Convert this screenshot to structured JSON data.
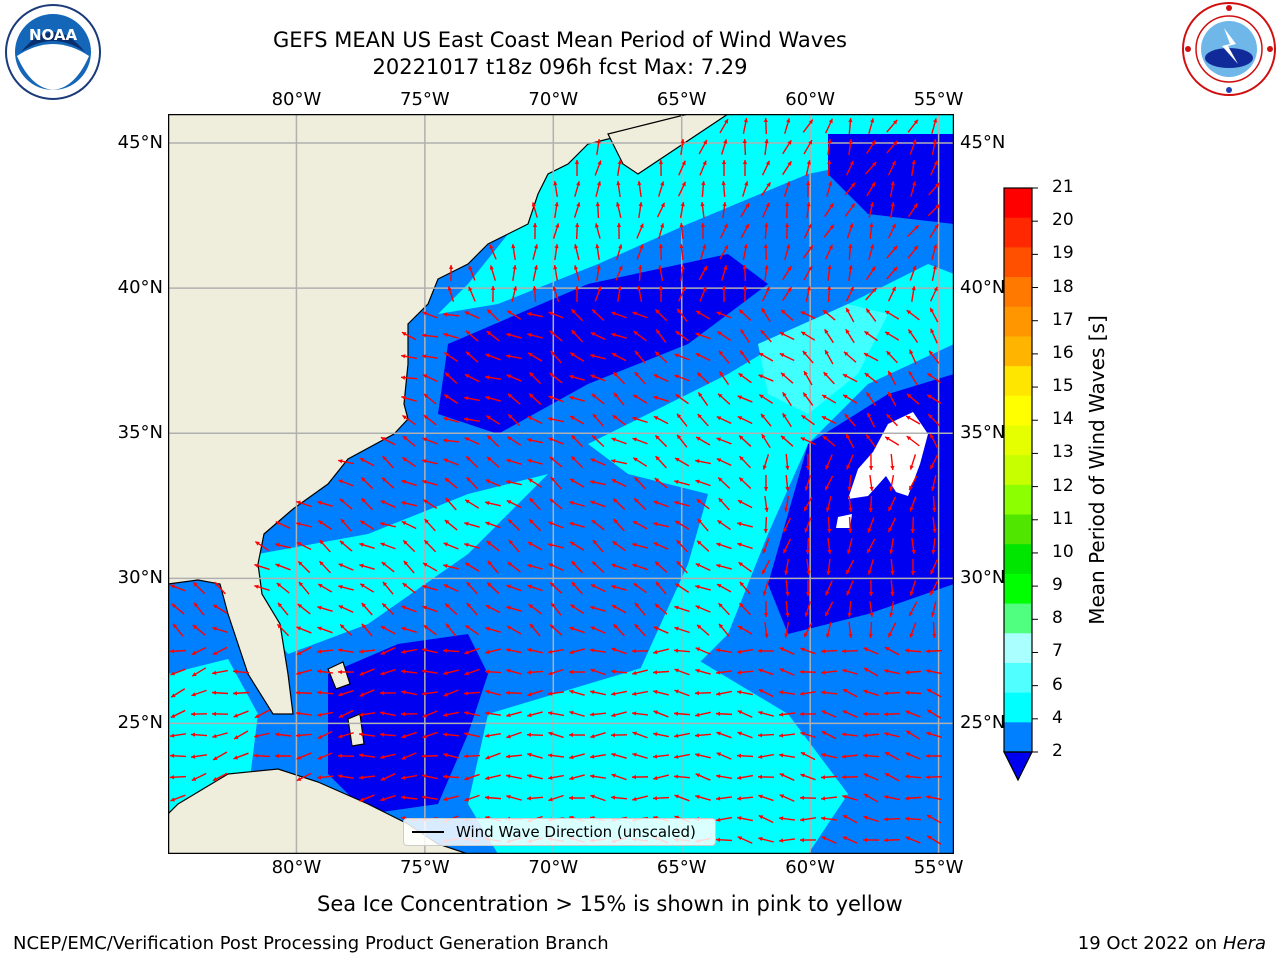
{
  "header": {
    "title_line1": "GEFS MEAN US East Coast Mean Period of Wind Waves",
    "title_line2": "20221017 t18z 096h fcst   Max: 7.29"
  },
  "logos": {
    "left": {
      "name": "NOAA",
      "text": "NOAA"
    },
    "right": {
      "name": "National Weather Service"
    }
  },
  "map": {
    "lon_ticks": [
      "80°W",
      "75°W",
      "70°W",
      "65°W",
      "60°W",
      "55°W"
    ],
    "lat_ticks": [
      "45°N",
      "40°N",
      "35°N",
      "30°N",
      "25°N"
    ],
    "lon_values": [
      -80,
      -75,
      -70,
      -65,
      -60,
      -55
    ],
    "lat_values": [
      45,
      40,
      35,
      30,
      25
    ],
    "extent": {
      "lon": [
        -85,
        -54.4
      ],
      "lat": [
        20.5,
        46
      ]
    },
    "legend_label": "Wind Wave Direction (unscaled)",
    "colors": {
      "land": "#efeedd",
      "ocean_2_4": "#0080ff",
      "ocean_0_2": "#0000f0",
      "ocean_4_6": "#00ffff",
      "ocean_6_8": "#40ffff",
      "no_data": "#ffffff",
      "arrows": "#ff0000",
      "grid": "#b0b0b0"
    }
  },
  "colorbar": {
    "label": "Mean Period of Wind Waves [s]",
    "ticks": [
      "21",
      "20",
      "19",
      "18",
      "17",
      "16",
      "15",
      "14",
      "13",
      "12",
      "11",
      "10",
      "9",
      "8",
      "7",
      "6",
      "4",
      "2"
    ],
    "colors": [
      "#ff0000",
      "#ff2800",
      "#ff5000",
      "#ff7800",
      "#ff9600",
      "#ffb400",
      "#ffe600",
      "#ffff00",
      "#e6ff00",
      "#c8ff00",
      "#8cff00",
      "#50e600",
      "#00e600",
      "#00ff00",
      "#50ff80",
      "#aaffff",
      "#50ffff",
      "#00ffff",
      "#0080ff"
    ],
    "extend_color": "#0000f0"
  },
  "footer": {
    "ice_note": "Sea Ice Concentration > 15% is shown in pink to yellow",
    "branch": "NCEP/EMC/Verification Post Processing Product Generation Branch",
    "date_prefix": "19 Oct 2022 on ",
    "machine": "Hera"
  }
}
